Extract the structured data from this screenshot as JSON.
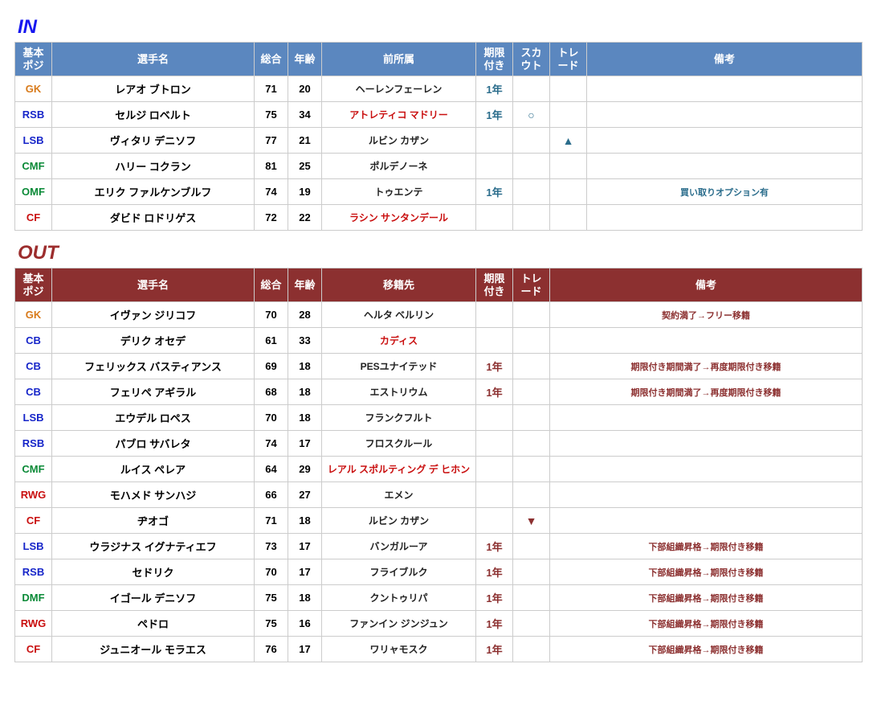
{
  "titles": {
    "in": "IN",
    "out": "OUT"
  },
  "headers": {
    "pos": "基本\nポジ",
    "name": "選手名",
    "ovr": "総合",
    "age": "年齢",
    "from": "前所属",
    "to": "移籍先",
    "loan": "期限\n付き",
    "scout": "スカ\nウト",
    "trade": "トレ\nード",
    "notes": "備考"
  },
  "in_rows": [
    {
      "pos": "GK",
      "name": "レアオ ブトロン",
      "ovr": "71",
      "age": "20",
      "club": "ヘーレンフェーレン",
      "club_red": false,
      "loan": "1年",
      "scout": "",
      "trade": "",
      "notes": ""
    },
    {
      "pos": "RSB",
      "name": "セルジ ロベルト",
      "ovr": "75",
      "age": "34",
      "club": "アトレティコ マドリー",
      "club_red": true,
      "loan": "1年",
      "scout": "○",
      "trade": "",
      "notes": ""
    },
    {
      "pos": "LSB",
      "name": "ヴィタリ デニソフ",
      "ovr": "77",
      "age": "21",
      "club": "ルビン カザン",
      "club_red": false,
      "loan": "",
      "scout": "",
      "trade": "▲",
      "notes": ""
    },
    {
      "pos": "CMF",
      "name": "ハリー コクラン",
      "ovr": "81",
      "age": "25",
      "club": "ポルデノーネ",
      "club_red": false,
      "loan": "",
      "scout": "",
      "trade": "",
      "notes": ""
    },
    {
      "pos": "OMF",
      "name": "エリク ファルケンブルフ",
      "ovr": "74",
      "age": "19",
      "club": "トゥエンテ",
      "club_red": false,
      "loan": "1年",
      "scout": "",
      "trade": "",
      "notes": "買い取りオプション有"
    },
    {
      "pos": "CF",
      "name": "ダビド ロドリゲス",
      "ovr": "72",
      "age": "22",
      "club": "ラシン サンタンデール",
      "club_red": true,
      "loan": "",
      "scout": "",
      "trade": "",
      "notes": ""
    }
  ],
  "out_rows": [
    {
      "pos": "GK",
      "name": "イヴァン ジリコフ",
      "ovr": "70",
      "age": "28",
      "club": "ヘルタ ベルリン",
      "club_red": false,
      "loan": "",
      "trade": "",
      "notes": "契約満了→フリー移籍"
    },
    {
      "pos": "CB",
      "name": "デリク オセデ",
      "ovr": "61",
      "age": "33",
      "club": "カディス",
      "club_red": true,
      "loan": "",
      "trade": "",
      "notes": ""
    },
    {
      "pos": "CB",
      "name": "フェリックス バスティアンス",
      "ovr": "69",
      "age": "18",
      "club": "PESユナイテッド",
      "club_red": false,
      "loan": "1年",
      "trade": "",
      "notes": "期限付き期間満了→再度期限付き移籍"
    },
    {
      "pos": "CB",
      "name": "フェリペ アギラル",
      "ovr": "68",
      "age": "18",
      "club": "エストリウム",
      "club_red": false,
      "loan": "1年",
      "trade": "",
      "notes": "期限付き期間満了→再度期限付き移籍"
    },
    {
      "pos": "LSB",
      "name": "エウデル ロペス",
      "ovr": "70",
      "age": "18",
      "club": "フランクフルト",
      "club_red": false,
      "loan": "",
      "trade": "",
      "notes": ""
    },
    {
      "pos": "RSB",
      "name": "パブロ サバレタ",
      "ovr": "74",
      "age": "17",
      "club": "フロスクルール",
      "club_red": false,
      "loan": "",
      "trade": "",
      "notes": ""
    },
    {
      "pos": "CMF",
      "name": "ルイス ペレア",
      "ovr": "64",
      "age": "29",
      "club": "レアル スポルティング デ ヒホン",
      "club_red": true,
      "loan": "",
      "trade": "",
      "notes": ""
    },
    {
      "pos": "RWG",
      "name": "モハメド サンハジ",
      "ovr": "66",
      "age": "27",
      "club": "エメン",
      "club_red": false,
      "loan": "",
      "trade": "",
      "notes": ""
    },
    {
      "pos": "CF",
      "name": "ヂオゴ",
      "ovr": "71",
      "age": "18",
      "club": "ルビン カザン",
      "club_red": false,
      "loan": "",
      "trade": "▼",
      "notes": ""
    },
    {
      "pos": "LSB",
      "name": "ウラジナス イグナティエフ",
      "ovr": "73",
      "age": "17",
      "club": "バンガルーア",
      "club_red": false,
      "loan": "1年",
      "trade": "",
      "notes": "下部組織昇格→期限付き移籍"
    },
    {
      "pos": "RSB",
      "name": "セドリク",
      "ovr": "70",
      "age": "17",
      "club": "フライブルク",
      "club_red": false,
      "loan": "1年",
      "trade": "",
      "notes": "下部組織昇格→期限付き移籍"
    },
    {
      "pos": "DMF",
      "name": "イゴール デニソフ",
      "ovr": "75",
      "age": "18",
      "club": "クントゥリパ",
      "club_red": false,
      "loan": "1年",
      "trade": "",
      "notes": "下部組織昇格→期限付き移籍"
    },
    {
      "pos": "RWG",
      "name": "ペドロ",
      "ovr": "75",
      "age": "16",
      "club": "ファンイン ジンジュン",
      "club_red": false,
      "loan": "1年",
      "trade": "",
      "notes": "下部組織昇格→期限付き移籍"
    },
    {
      "pos": "CF",
      "name": "ジュニオール モラエス",
      "ovr": "76",
      "age": "17",
      "club": "ワリャモスク",
      "club_red": false,
      "loan": "1年",
      "trade": "",
      "notes": "下部組織昇格→期限付き移籍"
    }
  ]
}
